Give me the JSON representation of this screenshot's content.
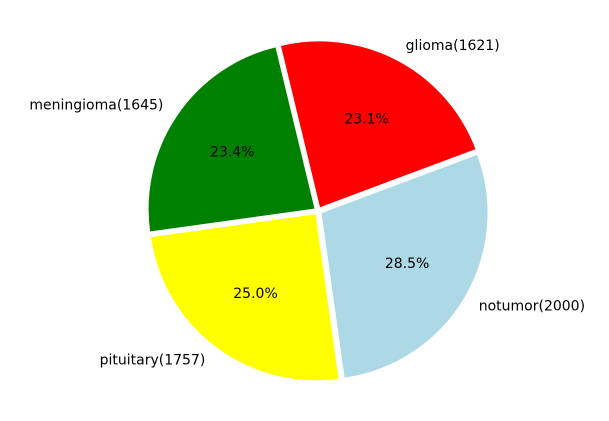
{
  "chart_data": {
    "type": "pie",
    "title": "",
    "series": [
      {
        "slices": [
          {
            "label": "glioma(1621)",
            "category": "glioma",
            "count": 1621,
            "percent": 23.1,
            "percent_label": "23.1%",
            "color": "#ff0000"
          },
          {
            "label": "meningioma(1645)",
            "category": "meningioma",
            "count": 1645,
            "percent": 23.4,
            "percent_label": "23.4%",
            "color": "#008000"
          },
          {
            "label": "pituitary(1757)",
            "category": "pituitary",
            "count": 1757,
            "percent": 25.0,
            "percent_label": "25.0%",
            "color": "#ffff00"
          },
          {
            "label": "notumor(2000)",
            "category": "notumor",
            "count": 2000,
            "percent": 28.5,
            "percent_label": "28.5%",
            "color": "#add8e6"
          }
        ]
      }
    ],
    "legend": "none",
    "edge_color": "#ffffff"
  }
}
